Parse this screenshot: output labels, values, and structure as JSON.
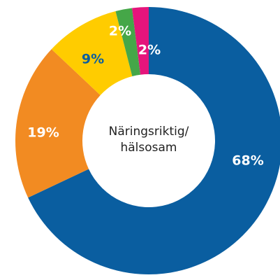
{
  "chart_data": {
    "type": "donut",
    "values": [
      68,
      19,
      9,
      2,
      2
    ],
    "value_labels": [
      "68%",
      "19%",
      "9%",
      "2%",
      "2%"
    ],
    "colors": [
      "#0a5ea0",
      "#f28b22",
      "#ffcc00",
      "#45a748",
      "#e5157c"
    ],
    "label_colors": [
      "#ffffff",
      "#ffffff",
      "#0a5ea0",
      "#ffffff",
      "#ffffff"
    ],
    "center_label": [
      "Näringsriktig/",
      "hälsosam"
    ]
  }
}
